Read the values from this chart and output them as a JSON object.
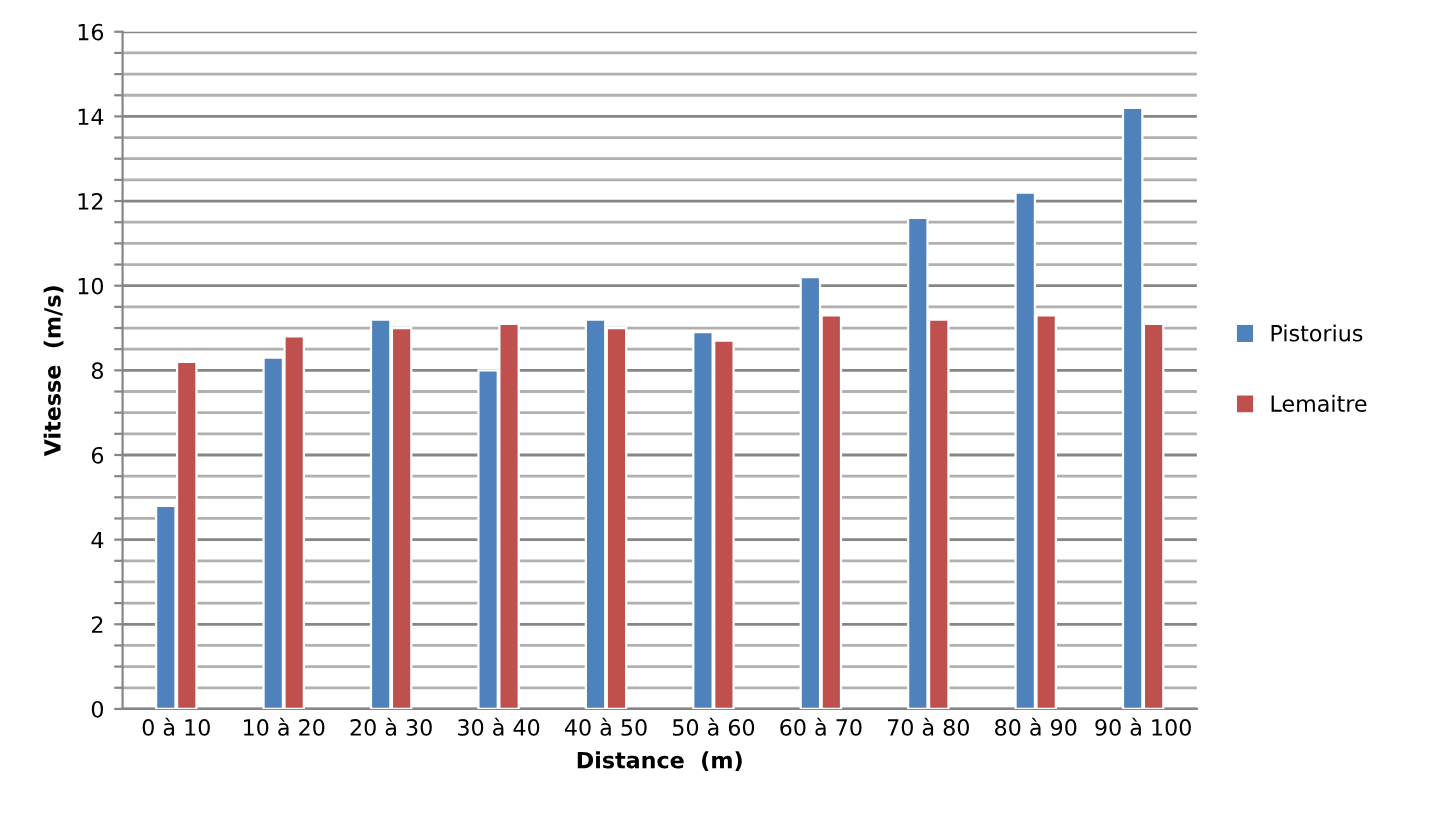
{
  "chart_data": {
    "type": "bar",
    "xlabel": "Distance  (m)",
    "ylabel": "Vitesse  (m/s)",
    "categories": [
      "0 à 10",
      "10 à 20",
      "20 à 30",
      "30 à 40",
      "40 à 50",
      "50 à 60",
      "60 à 70",
      "70 à 80",
      "80 à 90",
      "90 à 100"
    ],
    "series": [
      {
        "name": "Pistorius",
        "color": "#4f81bd",
        "values": [
          4.8,
          8.3,
          9.2,
          8.0,
          9.2,
          8.9,
          10.2,
          11.6,
          12.2,
          14.2
        ]
      },
      {
        "name": "Lemaitre",
        "color": "#c0504d",
        "values": [
          8.2,
          8.8,
          9.0,
          9.1,
          9.0,
          8.7,
          9.3,
          9.2,
          9.3,
          9.1
        ]
      }
    ],
    "ylim": [
      0,
      16
    ],
    "yticks": [
      0,
      {
        "value": 0.5,
        "label": null
      },
      {
        "value": 1,
        "label": null
      },
      {
        "value": 1.5,
        "label": null
      },
      2,
      {
        "value": 2.5,
        "label": null
      },
      {
        "value": 3,
        "label": null
      },
      {
        "value": 3.5,
        "label": null
      },
      4,
      {
        "value": 4.5,
        "label": null
      },
      {
        "value": 5,
        "label": null
      },
      {
        "value": 5.5,
        "label": null
      },
      6,
      {
        "value": 6.5,
        "label": null
      },
      {
        "value": 7,
        "label": null
      },
      {
        "value": 7.5,
        "label": null
      },
      8,
      {
        "value": 8.5,
        "label": null
      },
      {
        "value": 9,
        "label": null
      },
      {
        "value": 9.5,
        "label": null
      },
      10,
      {
        "value": 10.5,
        "label": null
      },
      {
        "value": 11,
        "label": null
      },
      {
        "value": 11.5,
        "label": null
      },
      12,
      {
        "value": 12.5,
        "label": null
      },
      {
        "value": 13,
        "label": null
      },
      {
        "value": 13.5,
        "label": null
      },
      14,
      {
        "value": 14.5,
        "label": null
      },
      {
        "value": 15,
        "label": null
      },
      {
        "value": 15.5,
        "label": null
      },
      16
    ],
    "grid": "y",
    "legend": "right"
  }
}
